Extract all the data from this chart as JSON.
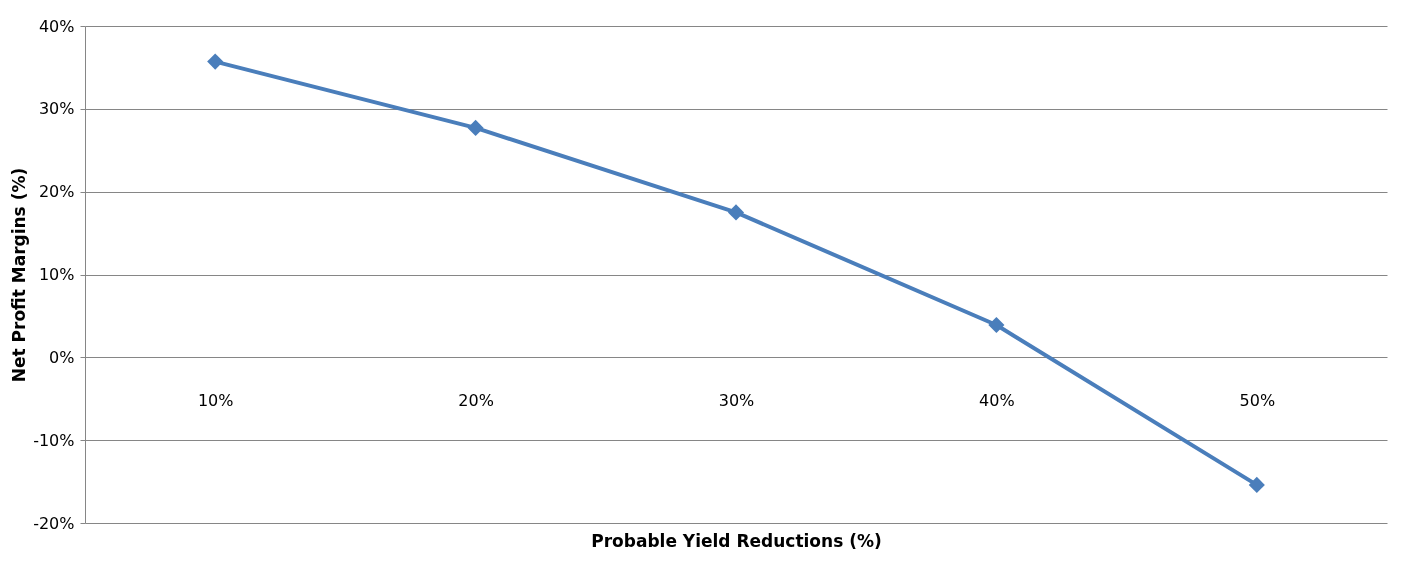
{
  "chart_data": {
    "type": "line",
    "xlabel": "Probable Yield Reductions (%)",
    "ylabel": "Net Profit Margins (%)",
    "categories": [
      "10%",
      "20%",
      "30%",
      "40%",
      "50%"
    ],
    "series": [
      {
        "color": "#4a7ebb",
        "values": [
          35.7,
          27.7,
          17.5,
          3.9,
          -15.4
        ]
      }
    ],
    "ylim": [
      -20,
      40
    ],
    "yticks": [
      {
        "value": -20,
        "label": "-20%"
      },
      {
        "value": -10,
        "label": "-10%"
      },
      {
        "value": 0,
        "label": "0%"
      },
      {
        "value": 10,
        "label": "10%"
      },
      {
        "value": 20,
        "label": "20%"
      },
      {
        "value": 30,
        "label": "30%"
      },
      {
        "value": 40,
        "label": "40%"
      }
    ],
    "grid": "y",
    "marker": "diamond"
  }
}
